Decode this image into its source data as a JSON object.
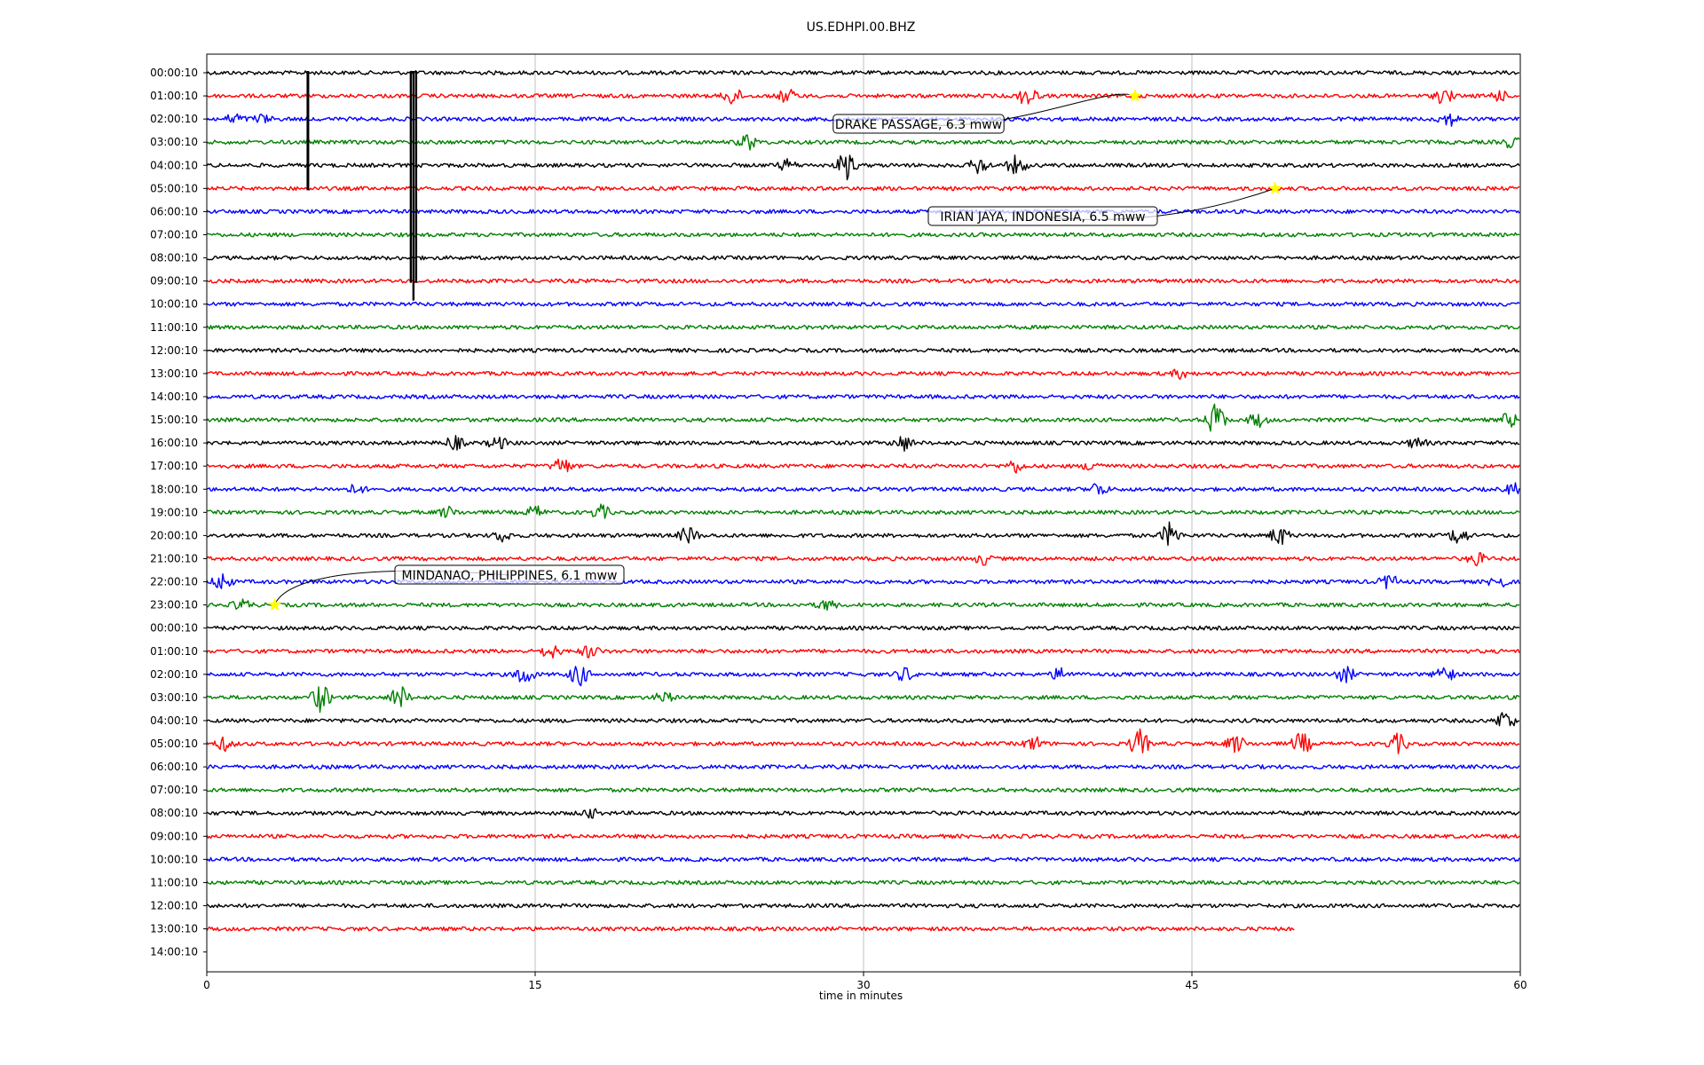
{
  "chart_data": {
    "type": "line",
    "title": "US.EDHPI.00.BHZ",
    "xlabel": "time in minutes",
    "ylabel": "",
    "xlim": [
      0,
      60
    ],
    "x_ticks": [
      0,
      15,
      30,
      45,
      60
    ],
    "grid": "vertical",
    "row_labels": [
      "00:00:10",
      "01:00:10",
      "02:00:10",
      "03:00:10",
      "04:00:10",
      "05:00:10",
      "06:00:10",
      "07:00:10",
      "08:00:10",
      "09:00:10",
      "10:00:10",
      "11:00:10",
      "12:00:10",
      "13:00:10",
      "14:00:10",
      "15:00:10",
      "16:00:10",
      "17:00:10",
      "18:00:10",
      "19:00:10",
      "20:00:10",
      "21:00:10",
      "22:00:10",
      "23:00:10",
      "00:00:10",
      "01:00:10",
      "02:00:10",
      "03:00:10",
      "04:00:10",
      "05:00:10",
      "06:00:10",
      "07:00:10",
      "08:00:10",
      "09:00:10",
      "10:00:10",
      "11:00:10",
      "12:00:10",
      "13:00:10",
      "14:00:10"
    ],
    "trace_colors": [
      "#000000",
      "#ff0000",
      "#0000ff",
      "#008000"
    ],
    "last_trace_end_minute": 49.7,
    "events": [
      {
        "label": "DRAKE PASSAGE, 6.3 mww",
        "row": 1,
        "minute": 42.4
      },
      {
        "label": "IRIAN JAYA, INDONESIA, 6.5 mww",
        "row": 5,
        "minute": 48.8
      },
      {
        "label": "MINDANAO, PHILIPPINES, 6.1 mww",
        "row": 23,
        "minute": 3.1
      }
    ],
    "marker_color": "#ffff00",
    "bursts": [
      {
        "row": 1,
        "minute": 24,
        "amp": 10
      },
      {
        "row": 1,
        "minute": 26.5,
        "amp": 8
      },
      {
        "row": 1,
        "minute": 37.5,
        "amp": 12
      },
      {
        "row": 1,
        "minute": 56.5,
        "amp": 9
      },
      {
        "row": 1,
        "minute": 59,
        "amp": 6
      },
      {
        "row": 2,
        "minute": 1.3,
        "amp": 6
      },
      {
        "row": 2,
        "minute": 2.5,
        "amp": 5
      },
      {
        "row": 2,
        "minute": 56.7,
        "amp": 8
      },
      {
        "row": 3,
        "minute": 24.7,
        "amp": 9
      },
      {
        "row": 3,
        "minute": 59.6,
        "amp": 6
      },
      {
        "row": 4,
        "minute": 26.5,
        "amp": 6
      },
      {
        "row": 4,
        "minute": 29.2,
        "amp": 16
      },
      {
        "row": 4,
        "minute": 35.3,
        "amp": 10
      },
      {
        "row": 4,
        "minute": 37,
        "amp": 11
      },
      {
        "row": 13,
        "minute": 44.5,
        "amp": 5
      },
      {
        "row": 15,
        "minute": 46.1,
        "amp": 20
      },
      {
        "row": 15,
        "minute": 48,
        "amp": 8
      },
      {
        "row": 15,
        "minute": 59.5,
        "amp": 8
      },
      {
        "row": 16,
        "minute": 11.3,
        "amp": 8
      },
      {
        "row": 16,
        "minute": 13.3,
        "amp": 7
      },
      {
        "row": 16,
        "minute": 31.8,
        "amp": 9
      },
      {
        "row": 16,
        "minute": 55.3,
        "amp": 6
      },
      {
        "row": 17,
        "minute": 16.2,
        "amp": 10
      },
      {
        "row": 17,
        "minute": 36.9,
        "amp": 7
      },
      {
        "row": 17,
        "minute": 40.5,
        "amp": 6
      },
      {
        "row": 18,
        "minute": 6.8,
        "amp": 5
      },
      {
        "row": 18,
        "minute": 40.7,
        "amp": 8
      },
      {
        "row": 18,
        "minute": 59.7,
        "amp": 6
      },
      {
        "row": 19,
        "minute": 11,
        "amp": 6
      },
      {
        "row": 19,
        "minute": 15,
        "amp": 7
      },
      {
        "row": 19,
        "minute": 18,
        "amp": 8
      },
      {
        "row": 20,
        "minute": 13.5,
        "amp": 6
      },
      {
        "row": 20,
        "minute": 22,
        "amp": 10
      },
      {
        "row": 20,
        "minute": 44,
        "amp": 14
      },
      {
        "row": 20,
        "minute": 49,
        "amp": 11
      },
      {
        "row": 20,
        "minute": 57.2,
        "amp": 10
      },
      {
        "row": 21,
        "minute": 35.5,
        "amp": 6
      },
      {
        "row": 21,
        "minute": 58,
        "amp": 7
      },
      {
        "row": 22,
        "minute": 0.7,
        "amp": 10
      },
      {
        "row": 22,
        "minute": 54,
        "amp": 8
      },
      {
        "row": 22,
        "minute": 59,
        "amp": 7
      },
      {
        "row": 23,
        "minute": 1.6,
        "amp": 6
      },
      {
        "row": 23,
        "minute": 28.3,
        "amp": 6
      },
      {
        "row": 25,
        "minute": 15.7,
        "amp": 8
      },
      {
        "row": 25,
        "minute": 17.5,
        "amp": 7
      },
      {
        "row": 26,
        "minute": 14.5,
        "amp": 12
      },
      {
        "row": 26,
        "minute": 17,
        "amp": 13
      },
      {
        "row": 26,
        "minute": 31.9,
        "amp": 8
      },
      {
        "row": 26,
        "minute": 39,
        "amp": 7
      },
      {
        "row": 26,
        "minute": 52,
        "amp": 9
      },
      {
        "row": 26,
        "minute": 56.5,
        "amp": 11
      },
      {
        "row": 27,
        "minute": 5.2,
        "amp": 16
      },
      {
        "row": 27,
        "minute": 8.8,
        "amp": 14
      },
      {
        "row": 27,
        "minute": 20.9,
        "amp": 6
      },
      {
        "row": 28,
        "minute": 59.3,
        "amp": 12
      },
      {
        "row": 29,
        "minute": 0.8,
        "amp": 7
      },
      {
        "row": 29,
        "minute": 37.8,
        "amp": 8
      },
      {
        "row": 29,
        "minute": 42.6,
        "amp": 16
      },
      {
        "row": 29,
        "minute": 47,
        "amp": 10
      },
      {
        "row": 29,
        "minute": 50,
        "amp": 13
      },
      {
        "row": 29,
        "minute": 54.4,
        "amp": 11
      },
      {
        "row": 32,
        "minute": 17.5,
        "amp": 5
      }
    ],
    "glitches": [
      {
        "rows": [
          0,
          5
        ],
        "minute": 4.7
      },
      {
        "rows": [
          0,
          9
        ],
        "minute": 9.4
      }
    ]
  }
}
